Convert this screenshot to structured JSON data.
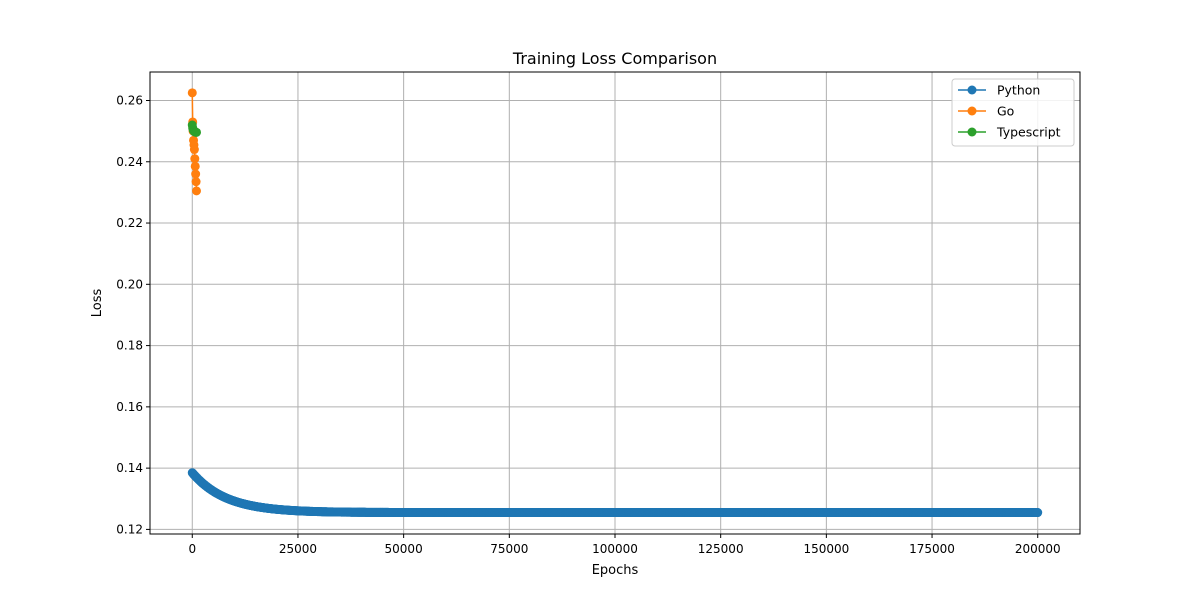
{
  "chart_data": {
    "type": "line",
    "title": "Training Loss Comparison",
    "xlabel": "Epochs",
    "ylabel": "Loss",
    "xlim": [
      -10000,
      210000
    ],
    "ylim": [
      0.1185,
      0.2693
    ],
    "xticks": [
      0,
      25000,
      50000,
      75000,
      100000,
      125000,
      150000,
      175000,
      200000
    ],
    "xtick_labels": [
      "0",
      "25000",
      "50000",
      "75000",
      "100000",
      "125000",
      "150000",
      "175000",
      "200000"
    ],
    "yticks": [
      0.12,
      0.14,
      0.16,
      0.18,
      0.2,
      0.22,
      0.24,
      0.26
    ],
    "ytick_labels": [
      "0.12",
      "0.14",
      "0.16",
      "0.18",
      "0.20",
      "0.22",
      "0.24",
      "0.26"
    ],
    "grid": true,
    "legend_position": "top-right",
    "series": [
      {
        "name": "Python",
        "color": "#1f77b4",
        "marker": "circle",
        "x_start": 0,
        "x_end": 200000,
        "x_step": 100,
        "value_at_start": 0.1385,
        "value_at_end": 0.1255,
        "decay_epochs": 8000,
        "x": [
          0,
          10000,
          20000,
          30000,
          50000,
          100000,
          150000,
          200000
        ],
        "values": [
          0.1385,
          0.1303,
          0.1274,
          0.1264,
          0.1257,
          0.1255,
          0.1255,
          0.1255
        ]
      },
      {
        "name": "Go",
        "color": "#ff7f0e",
        "marker": "circle",
        "x": [
          0,
          100,
          200,
          300,
          400,
          500,
          600,
          700,
          800,
          900,
          1000
        ],
        "values": [
          0.2625,
          0.253,
          0.25,
          0.247,
          0.2455,
          0.244,
          0.241,
          0.2385,
          0.236,
          0.2335,
          0.2305
        ]
      },
      {
        "name": "Typescript",
        "color": "#2ca02c",
        "marker": "circle",
        "x": [
          0,
          100,
          200,
          300,
          400,
          500,
          600,
          700,
          800,
          900,
          1000
        ],
        "values": [
          0.252,
          0.251,
          0.2505,
          0.2502,
          0.25,
          0.2499,
          0.2498,
          0.2497,
          0.2497,
          0.2496,
          0.2496
        ]
      }
    ]
  }
}
